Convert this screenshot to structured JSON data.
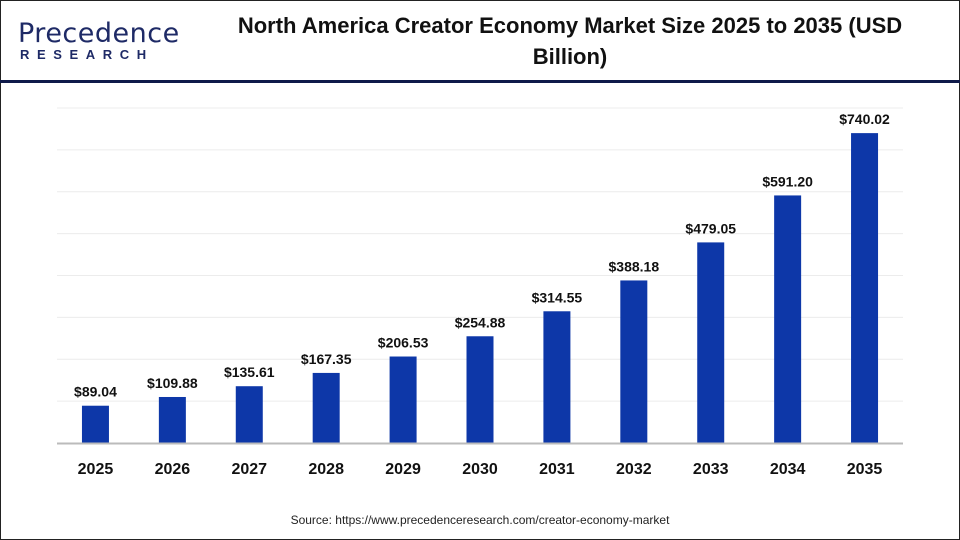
{
  "logo": {
    "main": "Precedence",
    "sub": "RESEARCH"
  },
  "chart_data": {
    "type": "bar",
    "title": "North America Creator Economy Market Size 2025 to 2035 (USD Billion)",
    "categories": [
      "2025",
      "2026",
      "2027",
      "2028",
      "2029",
      "2030",
      "2031",
      "2032",
      "2033",
      "2034",
      "2035"
    ],
    "values": [
      89.04,
      109.88,
      135.61,
      167.35,
      206.53,
      254.88,
      314.55,
      388.18,
      479.05,
      591.2,
      740.02
    ],
    "data_labels": [
      "$89.04",
      "$109.88",
      "$135.61",
      "$167.35",
      "$206.53",
      "$254.88",
      "$314.55",
      "$388.18",
      "$479.05",
      "$591.20",
      "$740.02"
    ],
    "xlabel": "",
    "ylabel": "",
    "ylim": [
      0,
      800
    ],
    "grid": true,
    "bar_color": "#0d37a8"
  },
  "source": "Source: https://www.precedenceresearch.com/creator-economy-market"
}
